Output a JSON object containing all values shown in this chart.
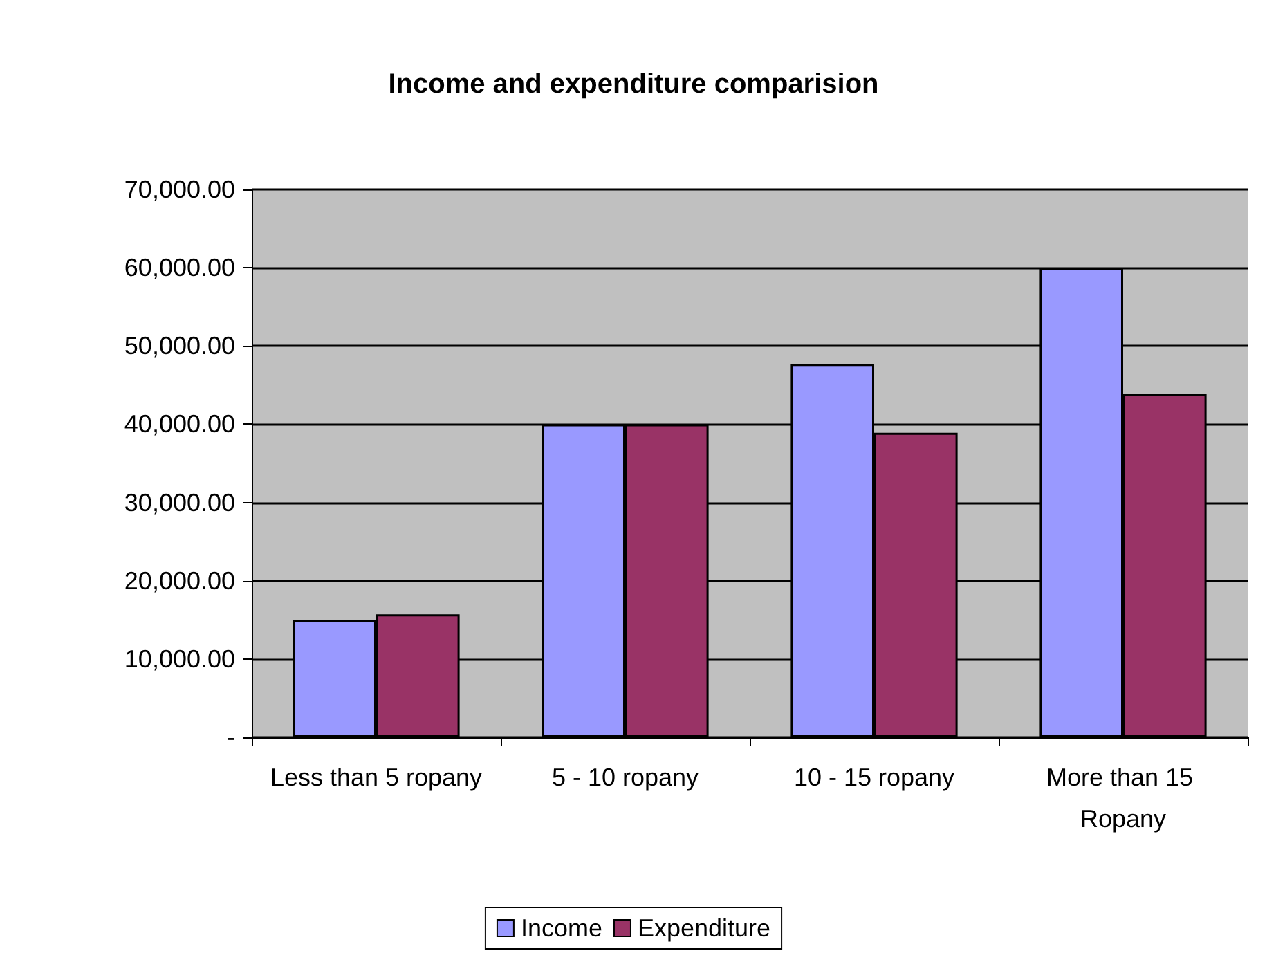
{
  "chart_data": {
    "type": "bar",
    "title": "Income and expenditure comparision",
    "categories": [
      "Less than 5 ropany",
      "5 - 10 ropany",
      "10 - 15 ropany",
      "More than 15 Ropany"
    ],
    "series": [
      {
        "name": "Income",
        "color": "#9999ff",
        "values": [
          15000,
          40000,
          47700,
          60000
        ]
      },
      {
        "name": "Expenditure",
        "color": "#993366",
        "values": [
          15700,
          40000,
          38900,
          43900
        ]
      }
    ],
    "ylim": [
      0,
      70000
    ],
    "yticks": [
      {
        "value": 0,
        "label": "-"
      },
      {
        "value": 10000,
        "label": "10,000.00"
      },
      {
        "value": 20000,
        "label": "20,000.00"
      },
      {
        "value": 30000,
        "label": "30,000.00"
      },
      {
        "value": 40000,
        "label": "40,000.00"
      },
      {
        "value": 50000,
        "label": "50,000.00"
      },
      {
        "value": 60000,
        "label": "60,000.00"
      },
      {
        "value": 70000,
        "label": "70,000.00"
      }
    ],
    "grid": "y",
    "legend": "bottom"
  }
}
